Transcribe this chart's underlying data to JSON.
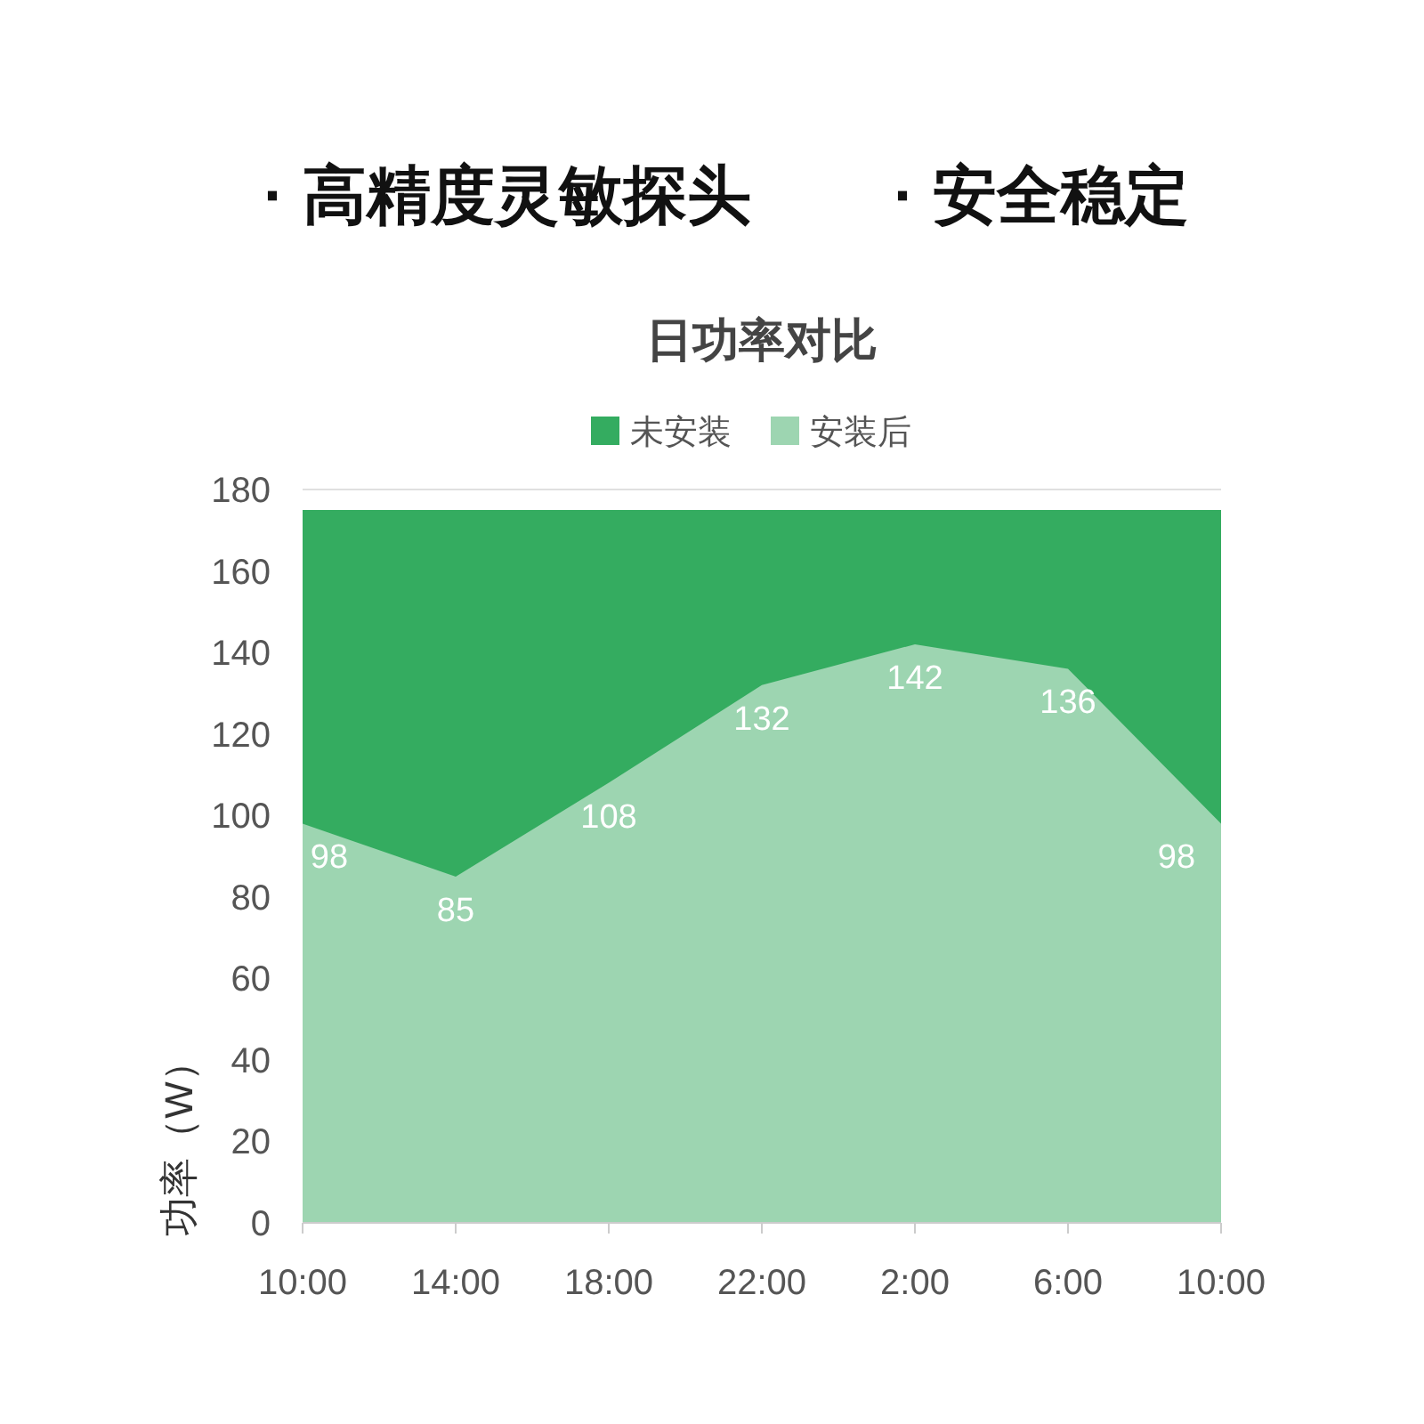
{
  "chart_data": {
    "type": "area",
    "title": "日功率对比",
    "ylabel": "功率（W）",
    "annotations": [
      "· 高精度灵敏探头",
      "· 安全稳定"
    ],
    "categories": [
      "10:00",
      "14:00",
      "18:00",
      "22:00",
      "2:00",
      "6:00",
      "10:00"
    ],
    "series": [
      {
        "name": "未安装",
        "color": "#34ac60",
        "values": [
          175,
          175,
          175,
          175,
          175,
          175,
          175
        ]
      },
      {
        "name": "安装后",
        "color": "#9dd5b1",
        "values": [
          98,
          85,
          108,
          132,
          142,
          136,
          98
        ],
        "value_labels": [
          "98",
          "85",
          "108",
          "132",
          "142",
          "136",
          "98"
        ]
      }
    ],
    "ylim": [
      0,
      180
    ],
    "yticks": [
      0,
      20,
      40,
      60,
      80,
      100,
      120,
      140,
      160,
      180
    ],
    "legend": "top"
  }
}
